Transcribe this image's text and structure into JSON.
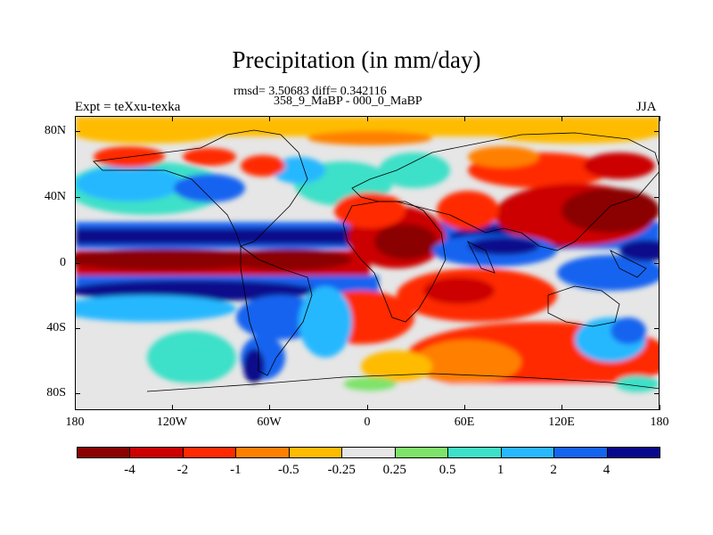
{
  "title": "Precipitation (in mm/day)",
  "stats": "rmsd= 3.50683 diff= 0.342116",
  "subtitle": "358_9_MaBP - 000_0_MaBP",
  "left_label": "Expt = teXxu-texka",
  "right_label": "JJA",
  "lat_labels": [
    "80N",
    "40N",
    "0",
    "40S",
    "80S"
  ],
  "lon_labels": [
    "180",
    "120W",
    "60W",
    "0",
    "60E",
    "120E",
    "180"
  ],
  "colorbar": {
    "colors": [
      "#8b0000",
      "#cc0000",
      "#ff2a00",
      "#ff8000",
      "#ffbb00",
      "#e6e6e6",
      "#7fe36b",
      "#3ee0c8",
      "#28b8ff",
      "#1464f0",
      "#08088c"
    ],
    "labels": [
      "-4",
      "-2",
      "-1",
      "-0.5",
      "-0.25",
      "0.25",
      "0.5",
      "1",
      "2",
      "4"
    ]
  }
}
